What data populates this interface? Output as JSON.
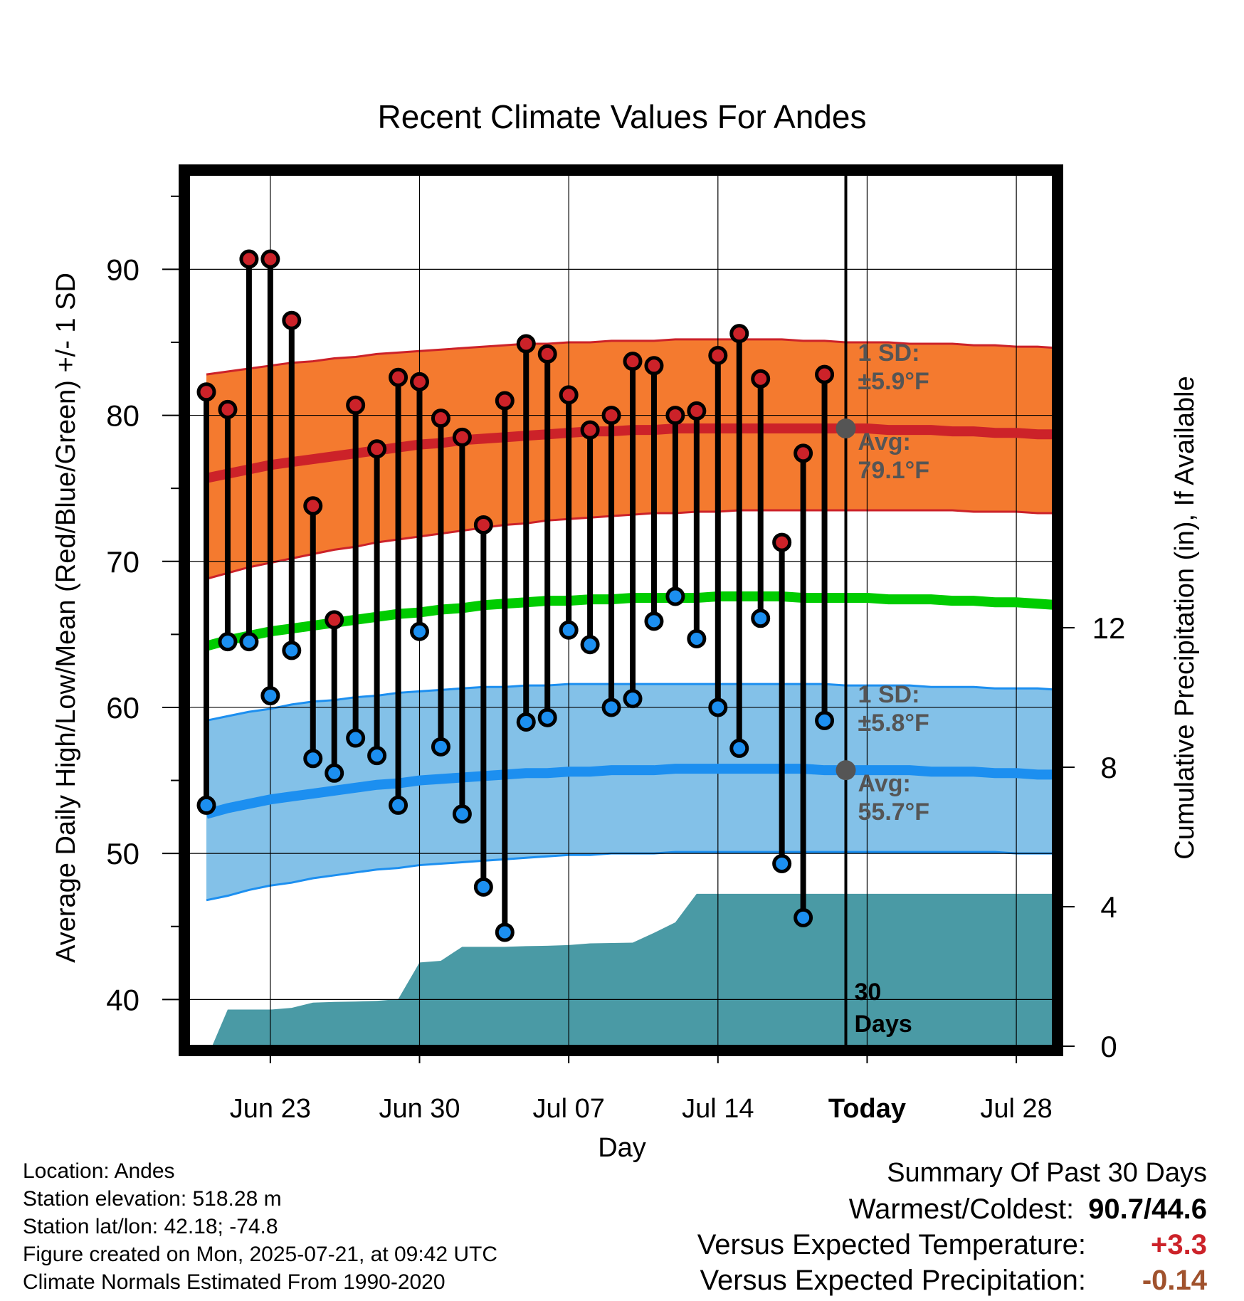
{
  "chart_data": {
    "type": "line",
    "title": "Recent Climate Values For Andes",
    "xlabel": "Day",
    "ylabel": "Average Daily High/Low/Mean (Red/Blue/Green) +/- 1 SD",
    "y2label": "Cumulative Precipitation (in), If Available",
    "xticks": [
      "Jun 23",
      "Jun 30",
      "Jul 07",
      "Jul 14",
      "Today",
      "Jul 28"
    ],
    "yticks": [
      40,
      50,
      60,
      70,
      80,
      90
    ],
    "y2ticks": [
      0,
      4,
      8,
      12
    ],
    "ylim": [
      36.8,
      96.5
    ],
    "y2lim": [
      0,
      25
    ],
    "grid": true,
    "colors": {
      "high": "#cc2229",
      "high_band": "#f47a2f",
      "low": "#1c8ff0",
      "low_band": "#83c1e8",
      "mean": "#00cc00",
      "precip": "#4a9aa5",
      "annotation": "#555555",
      "positive": "#cc2229",
      "negative": "#a0522d"
    },
    "days_offset_start": -30,
    "today_index": 30,
    "observed": {
      "dates": [
        "Jun 20",
        "Jun 21",
        "Jun 22",
        "Jun 23",
        "Jun 24",
        "Jun 25",
        "Jun 26",
        "Jun 27",
        "Jun 28",
        "Jun 29",
        "Jun 30",
        "Jul 01",
        "Jul 02",
        "Jul 03",
        "Jul 04",
        "Jul 05",
        "Jul 06",
        "Jul 07",
        "Jul 08",
        "Jul 09",
        "Jul 10",
        "Jul 11",
        "Jul 12",
        "Jul 13",
        "Jul 14",
        "Jul 15",
        "Jul 16",
        "Jul 17",
        "Jul 18",
        "Jul 19",
        "Jul 20"
      ],
      "high": [
        81.6,
        80.4,
        90.7,
        90.7,
        86.5,
        73.8,
        66.0,
        80.7,
        77.7,
        82.6,
        82.3,
        79.8,
        78.5,
        72.5,
        81.0,
        84.9,
        84.2,
        81.4,
        79.0,
        80.0,
        83.7,
        83.4,
        80.0,
        80.3,
        84.1,
        85.6,
        82.5,
        71.3,
        77.4,
        82.8,
        null
      ],
      "low": [
        53.3,
        64.5,
        64.5,
        60.8,
        63.9,
        56.5,
        55.5,
        57.9,
        56.7,
        53.3,
        65.2,
        57.3,
        52.7,
        47.7,
        44.6,
        59.0,
        59.3,
        65.3,
        64.3,
        60.0,
        60.6,
        65.9,
        67.6,
        64.7,
        60.0,
        57.2,
        66.1,
        49.3,
        45.6,
        59.1,
        null
      ]
    },
    "normals": {
      "high_avg": [
        75.7,
        76.0,
        76.3,
        76.6,
        76.8,
        77.0,
        77.2,
        77.4,
        77.6,
        77.8,
        78.0,
        78.1,
        78.3,
        78.4,
        78.5,
        78.6,
        78.7,
        78.8,
        78.9,
        78.9,
        79.0,
        79.0,
        79.1,
        79.1,
        79.1,
        79.1,
        79.1,
        79.1,
        79.1,
        79.1,
        79.1,
        79.1,
        79.0,
        79.0,
        79.0,
        78.9,
        78.9,
        78.8,
        78.8,
        78.7,
        78.7
      ],
      "high_upper": [
        82.8,
        83.0,
        83.2,
        83.4,
        83.6,
        83.7,
        83.9,
        84.0,
        84.2,
        84.3,
        84.4,
        84.5,
        84.6,
        84.7,
        84.8,
        84.9,
        84.9,
        85.0,
        85.0,
        85.1,
        85.1,
        85.1,
        85.2,
        85.2,
        85.2,
        85.2,
        85.2,
        85.2,
        85.1,
        85.1,
        85.0,
        85.0,
        85.0,
        84.9,
        84.9,
        84.9,
        84.8,
        84.8,
        84.7,
        84.7,
        84.6
      ],
      "high_lower": [
        68.8,
        69.2,
        69.6,
        69.9,
        70.2,
        70.5,
        70.8,
        71.0,
        71.3,
        71.5,
        71.7,
        71.9,
        72.1,
        72.3,
        72.5,
        72.6,
        72.8,
        72.9,
        73.0,
        73.1,
        73.2,
        73.3,
        73.3,
        73.4,
        73.4,
        73.5,
        73.5,
        73.5,
        73.5,
        73.5,
        73.5,
        73.5,
        73.5,
        73.5,
        73.5,
        73.5,
        73.4,
        73.4,
        73.4,
        73.3,
        73.3
      ],
      "mean": [
        64.2,
        64.6,
        64.9,
        65.2,
        65.4,
        65.6,
        65.8,
        66.0,
        66.2,
        66.4,
        66.5,
        66.7,
        66.8,
        67.0,
        67.1,
        67.2,
        67.3,
        67.3,
        67.4,
        67.4,
        67.5,
        67.5,
        67.5,
        67.5,
        67.6,
        67.6,
        67.6,
        67.6,
        67.5,
        67.5,
        67.5,
        67.5,
        67.4,
        67.4,
        67.4,
        67.3,
        67.3,
        67.2,
        67.2,
        67.1,
        67.0
      ],
      "low_avg": [
        52.7,
        53.1,
        53.4,
        53.7,
        53.9,
        54.1,
        54.3,
        54.5,
        54.7,
        54.8,
        55.0,
        55.1,
        55.2,
        55.3,
        55.4,
        55.5,
        55.5,
        55.6,
        55.6,
        55.7,
        55.7,
        55.7,
        55.8,
        55.8,
        55.8,
        55.8,
        55.8,
        55.8,
        55.8,
        55.7,
        55.7,
        55.7,
        55.7,
        55.7,
        55.6,
        55.6,
        55.6,
        55.5,
        55.5,
        55.4,
        55.4
      ],
      "low_upper": [
        59.1,
        59.4,
        59.7,
        59.9,
        60.2,
        60.4,
        60.5,
        60.7,
        60.8,
        61.0,
        61.1,
        61.2,
        61.3,
        61.4,
        61.4,
        61.5,
        61.5,
        61.6,
        61.6,
        61.6,
        61.6,
        61.6,
        61.6,
        61.6,
        61.6,
        61.6,
        61.6,
        61.6,
        61.6,
        61.6,
        61.5,
        61.5,
        61.5,
        61.5,
        61.4,
        61.4,
        61.4,
        61.3,
        61.3,
        61.3,
        61.2
      ],
      "low_lower": [
        46.8,
        47.1,
        47.5,
        47.8,
        48.0,
        48.3,
        48.5,
        48.7,
        48.9,
        49.0,
        49.2,
        49.3,
        49.4,
        49.5,
        49.6,
        49.7,
        49.8,
        49.9,
        49.9,
        50.0,
        50.0,
        50.0,
        50.1,
        50.1,
        50.1,
        50.1,
        50.1,
        50.1,
        50.1,
        50.1,
        50.1,
        50.1,
        50.1,
        50.1,
        50.1,
        50.1,
        50.1,
        50.1,
        50.0,
        50.0,
        50.0
      ]
    },
    "precip_cumulative": [
      0.0,
      1.05,
      1.05,
      1.05,
      1.1,
      1.25,
      1.27,
      1.28,
      1.3,
      1.35,
      2.4,
      2.45,
      2.85,
      2.85,
      2.85,
      2.87,
      2.88,
      2.9,
      2.95,
      2.96,
      2.97,
      3.25,
      3.55,
      4.37,
      4.37,
      4.37,
      4.37,
      4.37,
      4.37,
      4.37,
      4.37,
      4.37,
      4.37,
      4.37,
      4.37,
      4.37,
      4.37,
      4.37,
      4.37,
      4.37,
      4.37
    ],
    "annotations": {
      "high_sd_label": "1 SD:",
      "high_sd_value": "±5.9°F",
      "high_avg_label": "Avg:",
      "high_avg_value": "79.1°F",
      "high_avg": 79.1,
      "low_sd_label": "1 SD:",
      "low_sd_value": "±5.8°F",
      "low_avg_label": "Avg:",
      "low_avg_value": "55.7°F",
      "low_avg": 55.7,
      "window_line1": "30",
      "window_line2": "Days"
    }
  },
  "info": {
    "location": "Location: Andes",
    "elevation": "Station elevation: 518.28 m",
    "latlon": "Station lat/lon: 42.18; -74.8",
    "created": "Figure created on Mon, 2025-07-21, at 09:42 UTC",
    "normals": "Climate Normals Estimated From 1990-2020"
  },
  "summary": {
    "title": "Summary Of Past 30 Days",
    "warmest_coldest_label": "Warmest/Coldest:",
    "warmest_coldest_value": "90.7/44.6",
    "temp_label": "Versus Expected Temperature:",
    "temp_value": "+3.3",
    "precip_label": "Versus Expected Precipitation:",
    "precip_value": "-0.14"
  }
}
